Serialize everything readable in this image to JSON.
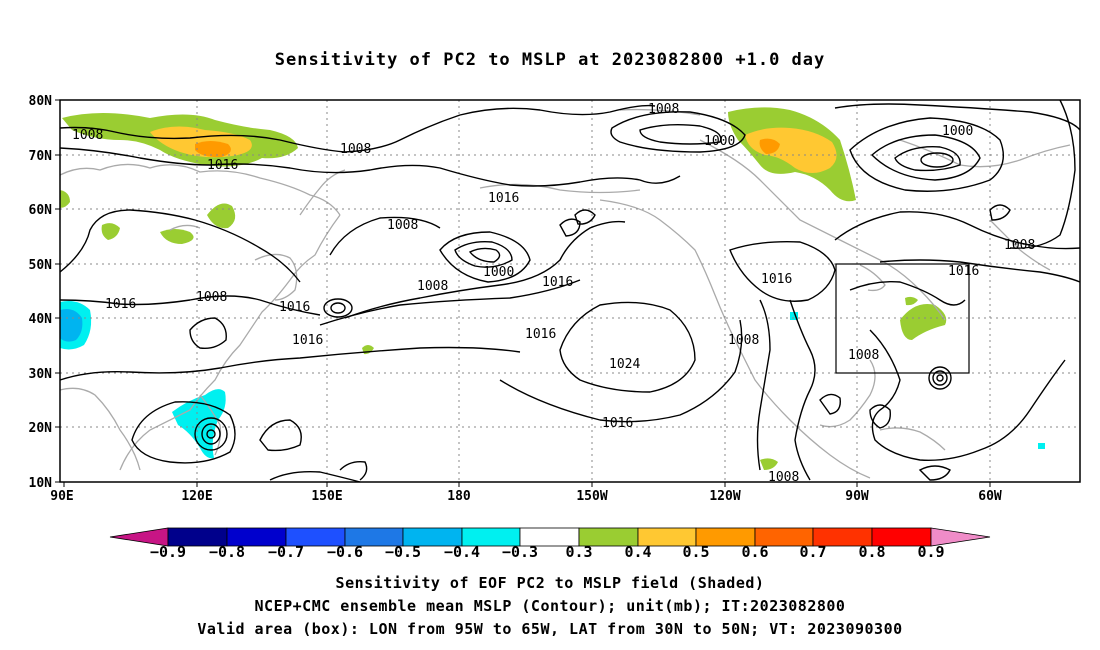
{
  "title": "Sensitivity of PC2 to MSLP at 2023082800 +1.0 day",
  "map": {
    "lat_ticks": [
      "80N",
      "70N",
      "60N",
      "50N",
      "40N",
      "30N",
      "20N",
      "10N"
    ],
    "lon_ticks": [
      "90E",
      "120E",
      "150E",
      "180",
      "150W",
      "120W",
      "90W",
      "60W"
    ],
    "grid_style": "dotted",
    "valid_box": {
      "lon_min": "95W",
      "lon_max": "65W",
      "lat_min": "30N",
      "lat_max": "50N"
    },
    "contour_labels": [
      "1008",
      "1008",
      "1008",
      "1000",
      "1000",
      "1016",
      "1016",
      "1008",
      "1000",
      "1016",
      "1008",
      "1016",
      "1016",
      "1008",
      "1016",
      "1016",
      "1016",
      "1024",
      "1008",
      "1016",
      "1008",
      "1016",
      "1008",
      "1008"
    ],
    "colors": {
      "land": "#aaaaaa",
      "contour": "#000000",
      "box": "#000000"
    }
  },
  "colorbar": {
    "labels": [
      "−0.9",
      "−0.8",
      "−0.7",
      "−0.6",
      "−0.5",
      "−0.4",
      "−0.3",
      "0.3",
      "0.4",
      "0.5",
      "0.6",
      "0.7",
      "0.8",
      "0.9"
    ],
    "colors": [
      "#c71585",
      "#00008b",
      "#0000cd",
      "#1e50ff",
      "#1e78e6",
      "#00b4f0",
      "#00f0f0",
      "#ffffff",
      "#9acd32",
      "#ffc832",
      "#ff9a00",
      "#ff6400",
      "#ff3200",
      "#ff0000",
      "#f08cc8"
    ]
  },
  "captions": [
    "Sensitivity of EOF PC2 to MSLP field (Shaded)",
    "NCEP+CMC ensemble mean MSLP (Contour); unit(mb); IT:2023082800",
    "Valid area (box): LON from 95W to 65W, LAT from 30N to 50N; VT: 2023090300"
  ]
}
